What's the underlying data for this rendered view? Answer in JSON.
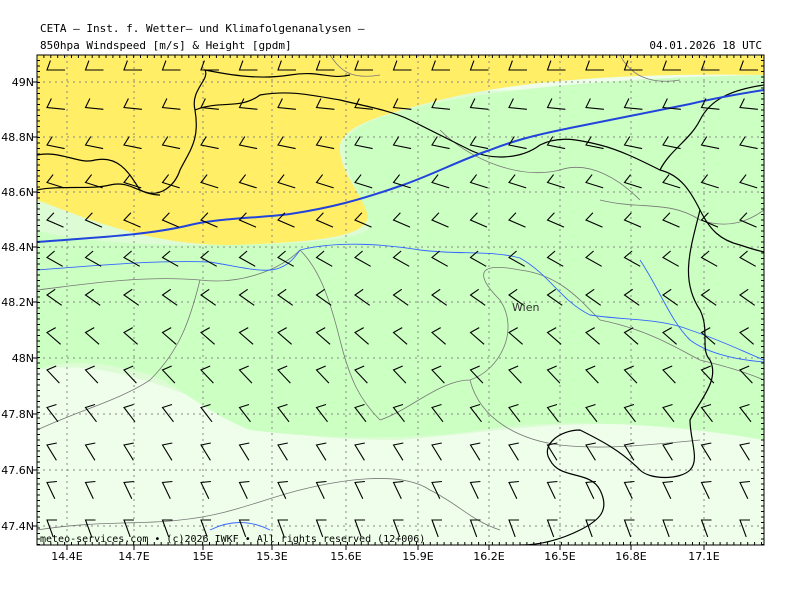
{
  "header": {
    "line1": "CETA – Inst. f. Wetter– und Klimafolgenanalysen –",
    "line2": "850hpa Windspeed [m/s] & Height [gpdm]",
    "datetime": "04.01.2026 18 UTC"
  },
  "credit": "meteo-services.com • (c)2026 IWKF • All rights reserved (12+006)",
  "city_label": "Wien",
  "axes": {
    "lon_labels": [
      "14.4E",
      "14.7E",
      "15E",
      "15.3E",
      "15.6E",
      "15.9E",
      "16.2E",
      "16.5E",
      "16.8E",
      "17.1E"
    ],
    "lat_labels": [
      "49N",
      "48.8N",
      "48.6N",
      "48.4N",
      "48.2N",
      "48N",
      "47.8N",
      "47.6N",
      "47.4N"
    ]
  },
  "colors": {
    "yellow_zone": "#ffee66",
    "green_zone": "#ccffc2",
    "green_mid": "#ddfcd6",
    "green_light": "#eefeea",
    "contour": "#2244dd",
    "river": "#3366ff",
    "border": "#000000"
  }
}
